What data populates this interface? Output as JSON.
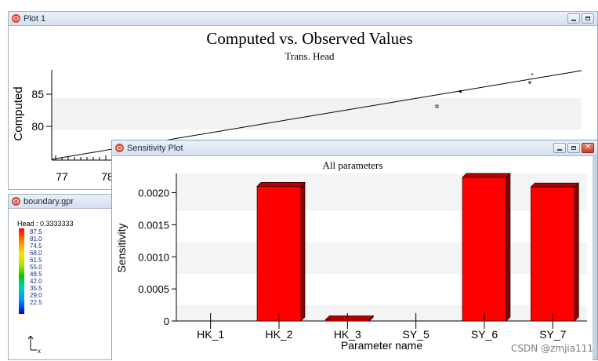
{
  "plot1": {
    "title": "Plot 1",
    "chart_title": "Computed vs. Observed Values",
    "chart_subtitle": "Trans. Head",
    "ylabel": "Computed",
    "y_ticks": [
      "85",
      "80"
    ],
    "x_ticks": [
      "77",
      "78"
    ]
  },
  "boundary": {
    "title": "boundary.gpr",
    "legend_title": "Head : 0.3333333",
    "levels": [
      "87.5",
      "81.0",
      "74.5",
      "68.0",
      "61.5",
      "55.0",
      "48.5",
      "42.0",
      "35.5",
      "29.0",
      "22.5"
    ],
    "axis_label": "x"
  },
  "sensitivity": {
    "title": "Sensitivity Plot"
  },
  "chart_data": {
    "type": "bar",
    "title": "All parameters",
    "xlabel": "Parameter name",
    "ylabel": "Sensitivity",
    "categories": [
      "HK_1",
      "HK_2",
      "HK_3",
      "SY_5",
      "SY_6",
      "SY_7"
    ],
    "values": [
      0.0,
      0.0021,
      2e-05,
      0.0,
      0.00224,
      0.00209
    ],
    "ylim": [
      0,
      0.0023
    ],
    "y_ticks": [
      "0",
      "0.0005",
      "0.0010",
      "0.0015",
      "0.0020"
    ],
    "bar_color": "#ff0000",
    "grid": false
  },
  "watermark": "CSDN @zmjia111"
}
